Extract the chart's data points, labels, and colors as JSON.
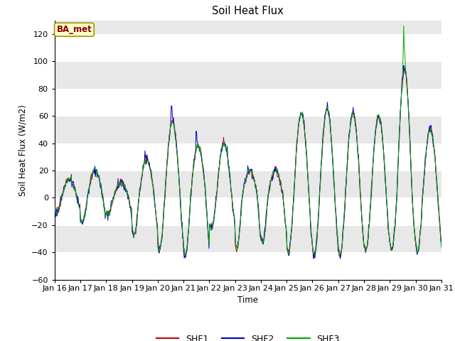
{
  "title": "Soil Heat Flux",
  "ylabel": "Soil Heat Flux (W/m2)",
  "xlabel": "Time",
  "ylim": [
    -60,
    130
  ],
  "yticks": [
    -60,
    -40,
    -20,
    0,
    20,
    40,
    60,
    80,
    100,
    120
  ],
  "x_labels": [
    "Jan 16",
    "Jan 17",
    "Jan 18",
    "Jan 19",
    "Jan 20",
    "Jan 21",
    "Jan 22",
    "Jan 23",
    "Jan 24",
    "Jan 25",
    "Jan 26",
    "Jan 27",
    "Jan 28",
    "Jan 29",
    "Jan 30",
    "Jan 31"
  ],
  "colors": {
    "SHF1": "#cc0000",
    "SHF2": "#0000cc",
    "SHF3": "#00aa00"
  },
  "fig_bg": "#ffffff",
  "plot_bg": "#e8e8e8",
  "annotation_text": "BA_met",
  "annotation_box_color": "#ffffcc",
  "annotation_text_color": "#880000",
  "annotation_edge_color": "#999900",
  "grid_color": "#ffffff",
  "band_colors": [
    "#e0e0e0",
    "#ececec"
  ],
  "legend_entries": [
    "SHF1",
    "SHF2",
    "SHF3"
  ]
}
